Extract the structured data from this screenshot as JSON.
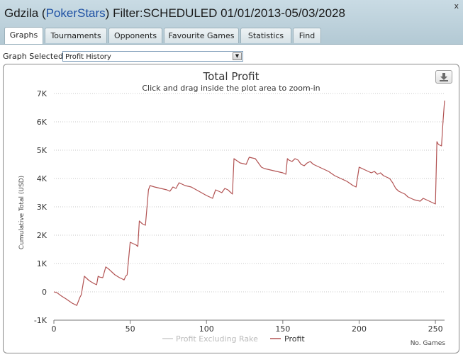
{
  "window": {
    "title_player": "Gdzila",
    "title_site": "PokerStars",
    "title_filter": "Filter:SCHEDULED 01/01/2013-05/03/2028",
    "close_label": "x"
  },
  "tabs": [
    {
      "label": "Graphs",
      "active": true
    },
    {
      "label": "Tournaments",
      "active": false
    },
    {
      "label": "Opponents",
      "active": false
    },
    {
      "label": "Favourite Games",
      "active": false
    },
    {
      "label": "Statistics",
      "active": false
    },
    {
      "label": "Find",
      "active": false
    }
  ],
  "graph_select": {
    "label": "Graph Selected:",
    "value": "Profit History"
  },
  "icons": {
    "download": "download-icon",
    "dropdown": "chevron-down-icon"
  },
  "colors": {
    "profit_line": "#b25353",
    "rake_line": "#cccccc",
    "grid": "#c8c8c8"
  },
  "chart_data": {
    "type": "line",
    "title": "Total Profit",
    "subtitle": "Click and drag inside the plot area to zoom-in",
    "xlabel": "No. Games",
    "ylabel": "Cumulative Total (USD)",
    "xlim": [
      0,
      256
    ],
    "ylim": [
      -1000,
      7000
    ],
    "x_ticks": [
      0,
      50,
      100,
      150,
      200,
      250
    ],
    "y_ticks": [
      -1000,
      0,
      1000,
      2000,
      3000,
      4000,
      5000,
      6000,
      7000
    ],
    "y_tick_labels": [
      "-1K",
      "0",
      "1K",
      "2K",
      "3K",
      "4K",
      "5K",
      "6K",
      "7K"
    ],
    "grid": true,
    "legend_position": "bottom-center",
    "series": [
      {
        "name": "Profit Excluding Rake",
        "visible": false,
        "x": [],
        "y": []
      },
      {
        "name": "Profit",
        "visible": true,
        "x": [
          0,
          2,
          5,
          8,
          12,
          15,
          17,
          18,
          20,
          23,
          26,
          28,
          29,
          30,
          32,
          34,
          36,
          38,
          40,
          43,
          45,
          46,
          47,
          48,
          50,
          52,
          54,
          55,
          56,
          58,
          60,
          62,
          63,
          66,
          70,
          74,
          76,
          78,
          80,
          82,
          84,
          86,
          90,
          95,
          100,
          102,
          104,
          106,
          108,
          110,
          112,
          114,
          116,
          117,
          118,
          122,
          126,
          128,
          132,
          134,
          136,
          138,
          142,
          146,
          150,
          152,
          153,
          154,
          156,
          158,
          160,
          162,
          164,
          166,
          168,
          170,
          172,
          174,
          176,
          178,
          180,
          184,
          188,
          192,
          196,
          198,
          200,
          204,
          208,
          210,
          212,
          214,
          216,
          218,
          220,
          222,
          224,
          226,
          228,
          230,
          232,
          236,
          240,
          242,
          244,
          246,
          248,
          250,
          251,
          252,
          254,
          255,
          256
        ],
        "y": [
          0,
          -30,
          -150,
          -250,
          -400,
          -480,
          -200,
          -100,
          550,
          400,
          300,
          250,
          550,
          520,
          500,
          880,
          800,
          700,
          600,
          500,
          450,
          420,
          550,
          600,
          1750,
          1700,
          1650,
          1600,
          2500,
          2400,
          2350,
          3600,
          3750,
          3700,
          3650,
          3600,
          3550,
          3700,
          3650,
          3850,
          3800,
          3750,
          3700,
          3550,
          3400,
          3350,
          3300,
          3600,
          3550,
          3500,
          3650,
          3600,
          3500,
          3450,
          4700,
          4550,
          4500,
          4750,
          4700,
          4550,
          4400,
          4350,
          4300,
          4250,
          4200,
          4150,
          4700,
          4650,
          4600,
          4700,
          4650,
          4500,
          4450,
          4550,
          4600,
          4500,
          4450,
          4400,
          4350,
          4300,
          4250,
          4100,
          4000,
          3900,
          3750,
          3700,
          4400,
          4300,
          4200,
          4250,
          4150,
          4200,
          4100,
          4050,
          4000,
          3850,
          3650,
          3550,
          3500,
          3450,
          3350,
          3250,
          3200,
          3300,
          3250,
          3200,
          3150,
          3100,
          5300,
          5200,
          5150,
          6000,
          6750
        ]
      }
    ]
  }
}
